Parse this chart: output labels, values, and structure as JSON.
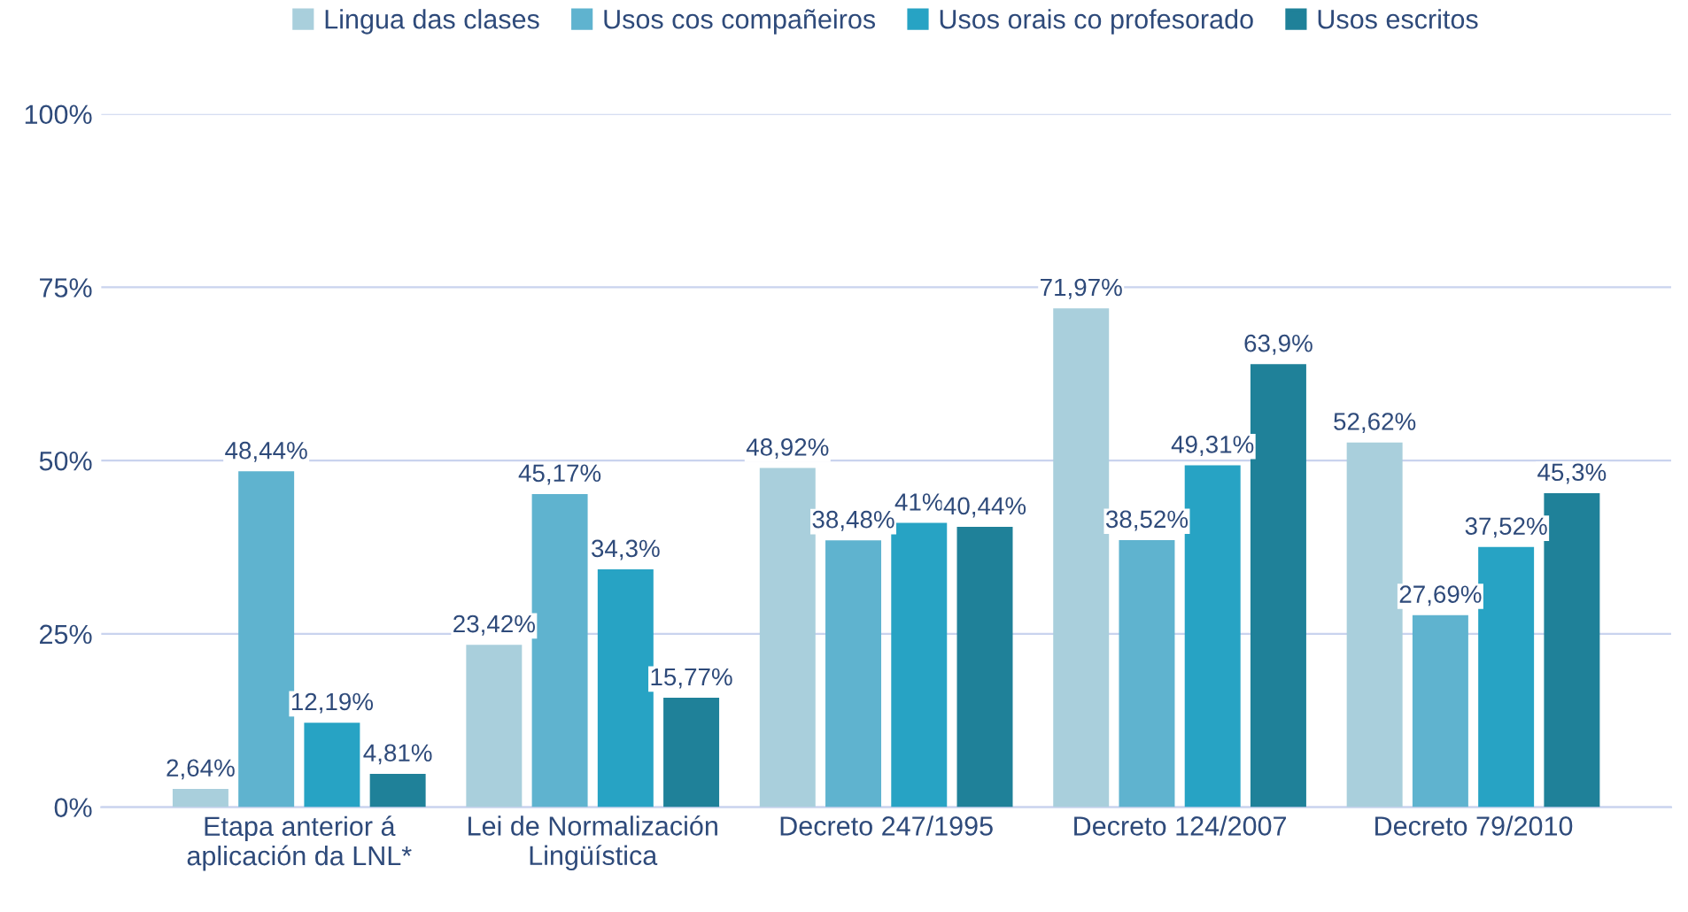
{
  "chart_data": {
    "type": "bar",
    "categories": [
      "Etapa anterior á\naplicación da LNL*",
      "Lei de Normalización\nLingüística",
      "Decreto 247/1995",
      "Decreto 124/2007",
      "Decreto 79/2010"
    ],
    "series": [
      {
        "name": "Lingua das clases",
        "color": "#a9cfdc",
        "values": [
          2.64,
          23.42,
          48.92,
          71.97,
          52.62
        ],
        "value_labels": [
          "2,64%",
          "23,42%",
          "48,92%",
          "71,97%",
          "52,62%"
        ]
      },
      {
        "name": "Usos cos compañeiros",
        "color": "#5fb3cf",
        "values": [
          48.44,
          45.17,
          38.48,
          38.52,
          27.69
        ],
        "value_labels": [
          "48,44%",
          "45,17%",
          "38,48%",
          "38,52%",
          "27,69%"
        ]
      },
      {
        "name": "Usos orais co profesorado",
        "color": "#27a3c4",
        "values": [
          12.19,
          34.3,
          41,
          49.31,
          37.52
        ],
        "value_labels": [
          "12,19%",
          "34,3%",
          "41%",
          "49,31%",
          "37,52%"
        ]
      },
      {
        "name": "Usos escritos",
        "color": "#1f8199",
        "values": [
          4.81,
          15.77,
          40.44,
          63.9,
          45.3
        ],
        "value_labels": [
          "4,81%",
          "15,77%",
          "40,44%",
          "63,9%",
          "45,3%"
        ]
      }
    ],
    "ylim": [
      0,
      100
    ],
    "yticks": [
      {
        "value": 0,
        "label": "0%"
      },
      {
        "value": 25,
        "label": "25%"
      },
      {
        "value": 50,
        "label": "50%"
      },
      {
        "value": 75,
        "label": "75%"
      },
      {
        "value": 100,
        "label": "100%"
      }
    ],
    "grid": "y",
    "legend": "top"
  }
}
